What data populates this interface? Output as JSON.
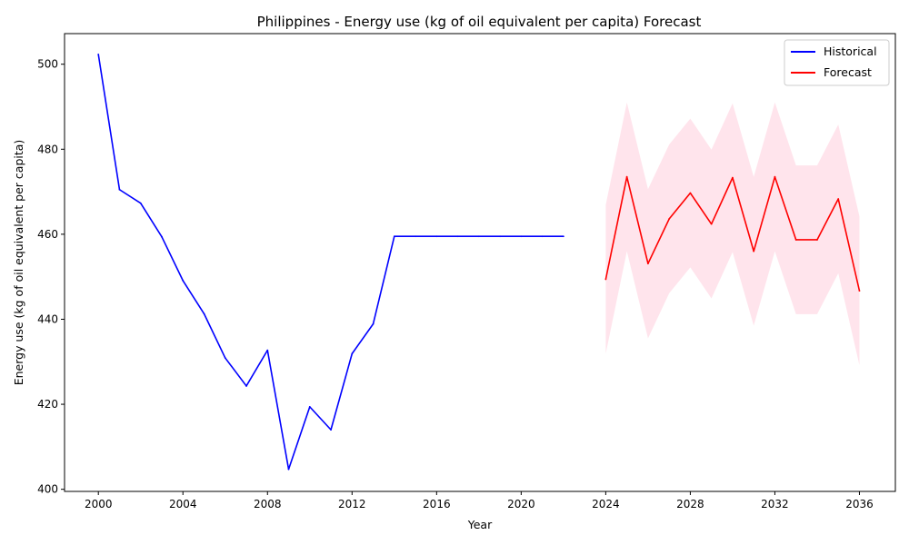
{
  "chart_data": {
    "type": "line",
    "title": "Philippines - Energy use (kg of oil equivalent per capita) Forecast",
    "xlabel": "Year",
    "ylabel": "Energy use (kg of oil equivalent per capita)",
    "xlim": [
      1998.4,
      2037.7
    ],
    "ylim": [
      399.5,
      507.2
    ],
    "x_ticks": [
      2000,
      2004,
      2008,
      2012,
      2016,
      2020,
      2024,
      2028,
      2032,
      2036
    ],
    "y_ticks": [
      400,
      420,
      440,
      460,
      480,
      500
    ],
    "grid": false,
    "legend_position": "top-right",
    "series": [
      {
        "name": "Historical",
        "color": "#0000ff",
        "x": [
          2000,
          2001,
          2002,
          2003,
          2004,
          2005,
          2006,
          2007,
          2008,
          2009,
          2010,
          2011,
          2012,
          2013,
          2014,
          2015,
          2016,
          2017,
          2018,
          2019,
          2020,
          2021,
          2022
        ],
        "values": [
          502.3,
          470.5,
          467.3,
          459.4,
          449.1,
          441.3,
          430.9,
          424.3,
          432.7,
          404.7,
          419.4,
          414.0,
          431.9,
          438.9,
          459.5,
          459.5,
          459.5,
          459.5,
          459.5,
          459.5,
          459.5,
          459.5,
          459.5
        ]
      },
      {
        "name": "Forecast",
        "color": "#ff0000",
        "x": [
          2024,
          2025,
          2026,
          2027,
          2028,
          2029,
          2030,
          2031,
          2032,
          2033,
          2034,
          2035,
          2036
        ],
        "values": [
          449.4,
          473.5,
          453.1,
          463.6,
          469.7,
          462.4,
          473.3,
          456.0,
          473.5,
          458.7,
          458.7,
          468.3,
          446.7
        ],
        "lower": [
          431.9,
          456.0,
          435.5,
          446.1,
          452.2,
          444.9,
          455.8,
          438.5,
          456.0,
          441.2,
          441.2,
          450.8,
          429.2
        ],
        "upper": [
          466.9,
          491.0,
          470.6,
          481.1,
          487.2,
          479.9,
          490.8,
          473.5,
          491.0,
          476.2,
          476.2,
          485.8,
          464.2
        ],
        "band_color": "#ffe4ec"
      }
    ]
  }
}
